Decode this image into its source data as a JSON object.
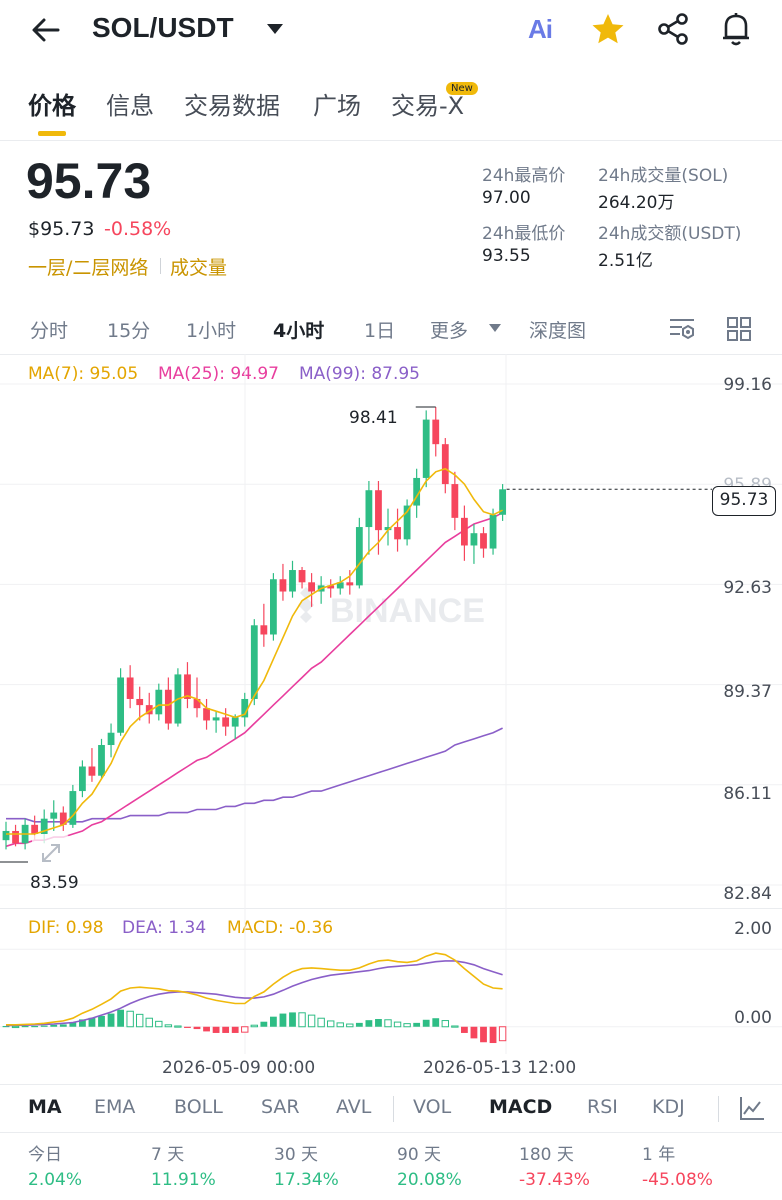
{
  "header": {
    "pair": "SOL/USDT",
    "ai_label": "Ai"
  },
  "tabs": [
    {
      "label": "价格",
      "active": true
    },
    {
      "label": "信息"
    },
    {
      "label": "交易数据"
    },
    {
      "label": "广场"
    },
    {
      "label": "交易-X",
      "badge": "New"
    }
  ],
  "price": {
    "last": "95.73",
    "usd": "$95.73",
    "change": "-0.58%",
    "tag1": "一层/二层网络",
    "tag2": "成交量"
  },
  "stats": {
    "high_label": "24h最高价",
    "high": "97.00",
    "vol_sol_label": "24h成交量(SOL)",
    "vol_sol": "264.20万",
    "low_label": "24h最低价",
    "low": "93.55",
    "vol_usdt_label": "24h成交额(USDT)",
    "vol_usdt": "2.51亿"
  },
  "timeframes": {
    "items": [
      "分时",
      "15分",
      "1小时",
      "4小时",
      "1日",
      "更多",
      "深度图"
    ],
    "active": "4小时"
  },
  "ma_legend": {
    "ma7": "MA(7): 95.05",
    "ma25": "MA(25): 94.97",
    "ma99": "MA(99): 87.95"
  },
  "price_axis": [
    "99.16",
    "95.89",
    "92.63",
    "89.37",
    "86.11",
    "82.84"
  ],
  "high_marker": "98.41",
  "low_marker": "83.59",
  "current_price_tag": "95.73",
  "watermark": "BINANCE",
  "macd_legend": {
    "dif": "DIF: 0.98",
    "dea": "DEA: 1.34",
    "macd": "MACD: -0.36"
  },
  "macd_axis": [
    "2.00",
    "0.00"
  ],
  "time_axis": [
    "2026-05-09 00:00",
    "2026-05-13 12:00"
  ],
  "indicators": {
    "items": [
      "MA",
      "EMA",
      "BOLL",
      "SAR",
      "AVL",
      "VOL",
      "MACD",
      "RSI",
      "KDJ"
    ],
    "active": [
      "MA",
      "MACD"
    ]
  },
  "periods": [
    {
      "label": "今日",
      "value": "2.04%",
      "up": true
    },
    {
      "label": "7 天",
      "value": "11.91%",
      "up": true
    },
    {
      "label": "30 天",
      "value": "17.34%",
      "up": true
    },
    {
      "label": "90 天",
      "value": "20.08%",
      "up": true
    },
    {
      "label": "180 天",
      "value": "-37.43%",
      "up": false
    },
    {
      "label": "1 年",
      "value": "-45.08%",
      "up": false
    }
  ],
  "colors": {
    "up": "#2ebd85",
    "down": "#f6465d",
    "ma7": "#f0b90b",
    "ma25": "#e83e9e",
    "ma99": "#8a5fc8",
    "accent": "#f0b90b"
  },
  "chart_data": {
    "type": "candlestick",
    "ylim": [
      82.84,
      99.16
    ],
    "high": 98.41,
    "low": 83.59,
    "last": 95.73,
    "ohlc": [
      [
        84.3,
        84.9,
        84.0,
        84.6
      ],
      [
        84.6,
        84.8,
        84.1,
        84.2
      ],
      [
        84.2,
        85.0,
        84.0,
        84.8
      ],
      [
        84.8,
        85.1,
        84.3,
        84.5
      ],
      [
        84.5,
        85.3,
        84.2,
        85.0
      ],
      [
        85.0,
        85.6,
        84.6,
        85.2
      ],
      [
        85.2,
        85.4,
        84.6,
        84.8
      ],
      [
        84.8,
        86.1,
        84.7,
        85.9
      ],
      [
        85.9,
        86.9,
        85.7,
        86.7
      ],
      [
        86.7,
        87.3,
        86.2,
        86.4
      ],
      [
        86.4,
        87.6,
        86.3,
        87.4
      ],
      [
        87.4,
        88.1,
        87.0,
        87.8
      ],
      [
        87.8,
        89.9,
        87.7,
        89.6
      ],
      [
        89.6,
        90.0,
        88.6,
        88.9
      ],
      [
        88.9,
        89.3,
        88.2,
        88.7
      ],
      [
        88.7,
        89.1,
        88.1,
        88.4
      ],
      [
        88.4,
        89.4,
        88.2,
        89.2
      ],
      [
        89.2,
        89.6,
        87.9,
        88.1
      ],
      [
        88.1,
        89.9,
        88.0,
        89.7
      ],
      [
        89.7,
        90.1,
        88.6,
        88.9
      ],
      [
        88.9,
        89.6,
        88.3,
        88.6
      ],
      [
        88.6,
        88.9,
        87.9,
        88.2
      ],
      [
        88.2,
        88.5,
        87.8,
        88.3
      ],
      [
        88.3,
        88.6,
        87.7,
        88.0
      ],
      [
        88.0,
        88.4,
        87.6,
        88.3
      ],
      [
        88.3,
        89.1,
        88.0,
        88.9
      ],
      [
        88.9,
        91.5,
        88.7,
        91.3
      ],
      [
        91.3,
        92.0,
        90.6,
        91.0
      ],
      [
        91.0,
        93.0,
        90.8,
        92.8
      ],
      [
        92.8,
        93.3,
        92.1,
        92.4
      ],
      [
        92.4,
        93.4,
        92.2,
        93.1
      ],
      [
        93.1,
        93.2,
        92.5,
        92.7
      ],
      [
        92.7,
        93.0,
        91.9,
        92.4
      ],
      [
        92.4,
        92.9,
        92.0,
        92.6
      ],
      [
        92.6,
        92.8,
        92.2,
        92.5
      ],
      [
        92.5,
        92.9,
        92.3,
        92.7
      ],
      [
        92.7,
        93.1,
        92.3,
        92.6
      ],
      [
        92.6,
        94.8,
        92.5,
        94.5
      ],
      [
        94.5,
        96.0,
        93.6,
        95.7
      ],
      [
        95.7,
        96.0,
        93.6,
        94.4
      ],
      [
        94.4,
        95.1,
        93.9,
        94.5
      ],
      [
        94.5,
        95.1,
        93.7,
        94.1
      ],
      [
        94.1,
        95.4,
        93.9,
        95.2
      ],
      [
        95.2,
        96.4,
        94.8,
        96.1
      ],
      [
        96.1,
        98.3,
        95.8,
        98.0
      ],
      [
        98.0,
        98.41,
        96.8,
        97.2
      ],
      [
        97.2,
        97.4,
        95.6,
        95.9
      ],
      [
        95.9,
        96.3,
        94.4,
        94.8
      ],
      [
        94.8,
        95.2,
        93.4,
        93.9
      ],
      [
        93.9,
        94.6,
        93.3,
        94.3
      ],
      [
        94.3,
        94.5,
        93.5,
        93.8
      ],
      [
        93.8,
        95.1,
        93.6,
        94.9
      ],
      [
        94.9,
        95.9,
        94.7,
        95.73
      ]
    ],
    "ma7": [
      84.5,
      84.5,
      84.5,
      84.5,
      84.6,
      84.7,
      84.8,
      85.1,
      85.5,
      85.8,
      86.3,
      86.8,
      87.5,
      88.0,
      88.3,
      88.5,
      88.7,
      88.7,
      88.9,
      89.0,
      88.9,
      88.6,
      88.5,
      88.4,
      88.3,
      88.4,
      89.0,
      89.5,
      90.2,
      90.9,
      91.6,
      92.1,
      92.3,
      92.5,
      92.6,
      92.7,
      92.9,
      93.3,
      93.7,
      94.0,
      94.4,
      94.7,
      95.0,
      95.5,
      96.0,
      96.3,
      96.4,
      96.2,
      95.9,
      95.4,
      95.0,
      94.9,
      95.05
    ],
    "ma25": [
      84.1,
      84.2,
      84.2,
      84.3,
      84.3,
      84.4,
      84.4,
      84.5,
      84.6,
      84.8,
      84.9,
      85.1,
      85.3,
      85.5,
      85.7,
      85.9,
      86.1,
      86.3,
      86.5,
      86.7,
      86.9,
      87.0,
      87.2,
      87.4,
      87.6,
      87.8,
      88.1,
      88.4,
      88.7,
      89.0,
      89.3,
      89.6,
      89.9,
      90.1,
      90.4,
      90.7,
      91.0,
      91.3,
      91.6,
      91.9,
      92.2,
      92.5,
      92.8,
      93.1,
      93.4,
      93.7,
      94.0,
      94.2,
      94.4,
      94.6,
      94.7,
      94.8,
      94.97
    ],
    "ma99": [
      85.0,
      85.0,
      85.0,
      84.9,
      84.9,
      84.9,
      84.9,
      84.9,
      84.9,
      85.0,
      85.0,
      85.0,
      85.0,
      85.1,
      85.1,
      85.1,
      85.1,
      85.2,
      85.2,
      85.2,
      85.3,
      85.3,
      85.3,
      85.4,
      85.4,
      85.5,
      85.5,
      85.6,
      85.6,
      85.7,
      85.7,
      85.8,
      85.9,
      85.9,
      86.0,
      86.1,
      86.2,
      86.3,
      86.4,
      86.5,
      86.6,
      86.7,
      86.8,
      86.9,
      87.0,
      87.1,
      87.2,
      87.4,
      87.5,
      87.6,
      87.7,
      87.8,
      87.95
    ],
    "macd_ylim": [
      -0.6,
      2.6
    ],
    "dif": [
      0.05,
      0.05,
      0.06,
      0.07,
      0.09,
      0.12,
      0.15,
      0.22,
      0.35,
      0.45,
      0.58,
      0.72,
      0.92,
      1.0,
      1.02,
      1.0,
      0.98,
      0.93,
      0.92,
      0.88,
      0.82,
      0.74,
      0.68,
      0.64,
      0.6,
      0.6,
      0.78,
      0.9,
      1.1,
      1.28,
      1.42,
      1.5,
      1.52,
      1.5,
      1.48,
      1.46,
      1.46,
      1.52,
      1.62,
      1.7,
      1.72,
      1.68,
      1.66,
      1.7,
      1.82,
      1.9,
      1.86,
      1.72,
      1.5,
      1.3,
      1.1,
      1.0,
      0.98
    ],
    "dea": [
      0.03,
      0.04,
      0.04,
      0.05,
      0.06,
      0.07,
      0.09,
      0.11,
      0.16,
      0.22,
      0.3,
      0.38,
      0.48,
      0.6,
      0.7,
      0.78,
      0.84,
      0.88,
      0.9,
      0.9,
      0.88,
      0.86,
      0.84,
      0.8,
      0.76,
      0.74,
      0.74,
      0.77,
      0.84,
      0.94,
      1.05,
      1.14,
      1.22,
      1.28,
      1.33,
      1.36,
      1.39,
      1.42,
      1.45,
      1.5,
      1.54,
      1.56,
      1.58,
      1.6,
      1.64,
      1.68,
      1.7,
      1.7,
      1.66,
      1.6,
      1.5,
      1.42,
      1.34
    ],
    "macd_hist": [
      0.02,
      0.01,
      0.02,
      0.02,
      0.03,
      0.05,
      0.06,
      0.11,
      0.19,
      0.23,
      0.28,
      0.34,
      0.44,
      0.4,
      0.32,
      0.22,
      0.14,
      0.05,
      0.02,
      -0.02,
      -0.06,
      -0.12,
      -0.16,
      -0.16,
      -0.16,
      -0.14,
      0.04,
      0.13,
      0.26,
      0.34,
      0.37,
      0.36,
      0.3,
      0.22,
      0.15,
      0.1,
      0.07,
      0.1,
      0.17,
      0.2,
      0.18,
      0.12,
      0.08,
      0.1,
      0.18,
      0.22,
      0.16,
      0.02,
      -0.16,
      -0.3,
      -0.4,
      -0.42,
      -0.36
    ]
  }
}
